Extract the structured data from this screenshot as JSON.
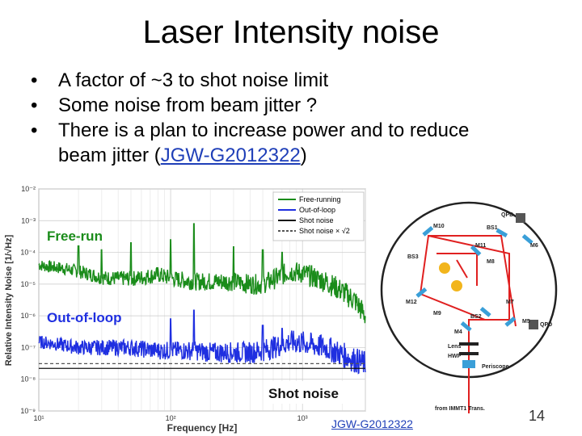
{
  "slide": {
    "title": "Laser Intensity noise",
    "bullets": [
      "A factor of ~3 to shot noise limit",
      "Some noise from beam jitter ?",
      "There is a plan to increase power and to reduce"
    ],
    "bullet3_line2_pre": "beam jitter (",
    "bullet3_link": "JGW-G2012322",
    "bullet3_line2_post": ")",
    "bottom_link": "JGW-G2012322",
    "page_number": "14"
  },
  "chart_data": {
    "type": "line",
    "xlabel": "Frequency [Hz]",
    "ylabel": "Relative Intensity Noise [1/√Hz]",
    "xscale": "log",
    "yscale": "log",
    "xlim": [
      10,
      3000
    ],
    "ylim": [
      1e-09,
      0.01
    ],
    "x_ticks": [
      "10¹",
      "10²",
      "10³"
    ],
    "y_ticks": [
      "10⁻²",
      "10⁻³",
      "10⁻⁴",
      "10⁻⁵",
      "10⁻⁶",
      "10⁻⁷",
      "10⁻⁸",
      "10⁻⁹"
    ],
    "grid": true,
    "legend_position": "top-right",
    "annotations": [
      "Free-run",
      "Out-of-loop",
      "Shot noise"
    ],
    "colors": {
      "free": "#1a8c1a",
      "oop": "#1f2fe0",
      "shot": "#111111"
    },
    "series": [
      {
        "name": "Free-running",
        "x": [
          10,
          12,
          15,
          20,
          25,
          30,
          40,
          50,
          60,
          80,
          100,
          150,
          200,
          300,
          400,
          500,
          600,
          800,
          1000,
          1500,
          2000,
          2500,
          3000
        ],
        "y": [
          4e-05,
          3.5e-05,
          3.2e-05,
          2.5e-05,
          2e-05,
          1.6e-05,
          1.5e-05,
          1.5e-05,
          1.6e-05,
          2e-05,
          1.5e-05,
          1.2e-05,
          1.2e-05,
          1.2e-05,
          1e-05,
          1e-05,
          1.4e-05,
          2.5e-05,
          2.2e-05,
          1.2e-05,
          6e-06,
          3e-06,
          1e-06
        ]
      },
      {
        "name": "Out-of-loop",
        "x": [
          10,
          12,
          15,
          20,
          25,
          30,
          40,
          50,
          60,
          80,
          100,
          150,
          200,
          300,
          400,
          500,
          600,
          800,
          1000,
          1500,
          2000,
          2500,
          3000
        ],
        "y": [
          1.5e-07,
          1.4e-07,
          1.2e-07,
          1e-07,
          1e-07,
          1e-07,
          1e-07,
          1e-07,
          9e-08,
          8e-08,
          8e-08,
          8e-08,
          7e-08,
          7e-08,
          7e-08,
          8e-08,
          1e-07,
          1.5e-07,
          1.4e-07,
          1e-07,
          6e-08,
          4e-08,
          3e-08
        ]
      },
      {
        "name": "Shot noise",
        "x": [
          10,
          3000
        ],
        "y": [
          2.2e-08,
          2.2e-08
        ]
      },
      {
        "name": "Shot noise × √2",
        "x": [
          10,
          3000
        ],
        "y": [
          3.1e-08,
          3.1e-08
        ]
      }
    ]
  },
  "diagram": {
    "labels": [
      "QPD",
      "M10",
      "BS1",
      "M6",
      "M11",
      "BS3",
      "M8",
      "M7",
      "M12",
      "M9",
      "BS2",
      "M5",
      "QPD",
      "M4",
      "Lens",
      "HWP",
      "Periscope",
      "from IMMT1 Trans."
    ]
  }
}
